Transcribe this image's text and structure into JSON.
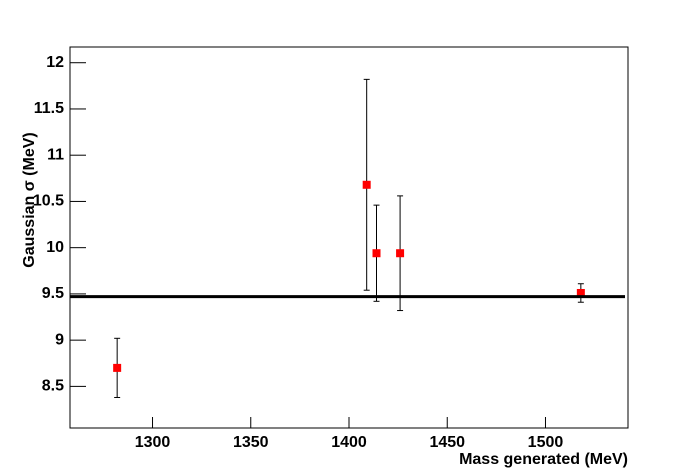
{
  "chart_data": {
    "type": "scatter",
    "x_label": "Mass generated (MeV)",
    "y_label": "Gaussian σ (MeV)",
    "x": [
      1282,
      1409,
      1414,
      1426,
      1518
    ],
    "values": [
      8.7,
      10.68,
      9.94,
      9.94,
      9.51
    ],
    "errors": [
      0.32,
      1.14,
      0.52,
      0.62,
      0.1
    ],
    "color": "#ff0000",
    "fit_value": 9.47,
    "fit_color": "#000000",
    "xlim": [
      1258,
      1542
    ],
    "ylim": [
      8.05,
      12.17
    ],
    "xticks": [
      1300,
      1350,
      1400,
      1450,
      1500
    ],
    "yticks": [
      8.5,
      9,
      9.5,
      10,
      10.5,
      11,
      11.5,
      12
    ]
  }
}
